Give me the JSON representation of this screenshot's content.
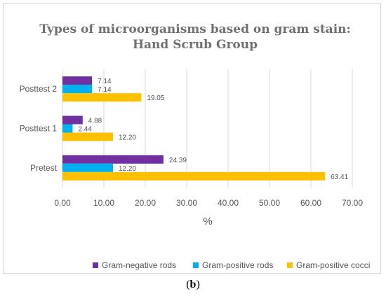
{
  "chart_data": {
    "type": "bar",
    "orientation": "horizontal",
    "title": [
      "Types of microorganisms based on gram stain:",
      "Hand Scrub Group"
    ],
    "xlabel": "%",
    "ylabel": "",
    "xlim": [
      0,
      70
    ],
    "xticks": [
      "0.00",
      "10.00",
      "20.00",
      "30.00",
      "40.00",
      "50.00",
      "60.00",
      "70.00"
    ],
    "categories": [
      "Pretest",
      "Posttest 1",
      "Posttest 2"
    ],
    "series": [
      {
        "name": "Gram-negative rods",
        "color": "#7030A0",
        "values": [
          24.39,
          4.88,
          7.14
        ],
        "labels": [
          "24.39",
          "4.88",
          "7.14"
        ]
      },
      {
        "name": "Gram-positive rods",
        "color": "#00B0F0",
        "values": [
          12.2,
          2.44,
          7.14
        ],
        "labels": [
          "12.20",
          "2.44",
          "7.14"
        ]
      },
      {
        "name": "Gram-positive cocci",
        "color": "#FFC000",
        "values": [
          63.41,
          12.2,
          19.05
        ],
        "labels": [
          "63.41",
          "12.20",
          "19.05"
        ]
      }
    ],
    "grid": true,
    "legend": "bottom"
  },
  "caption": {
    "open": "(",
    "letter": "b",
    "close": ")"
  }
}
